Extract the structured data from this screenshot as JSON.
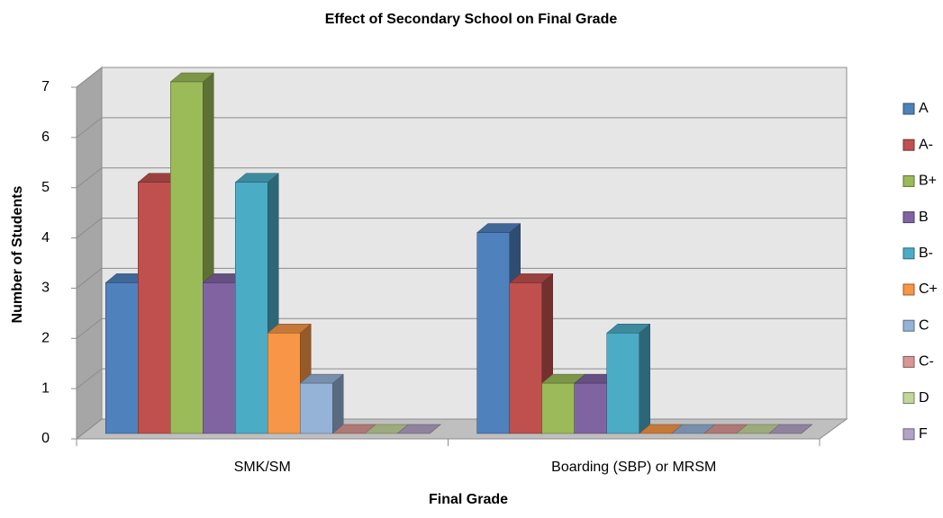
{
  "chart_data": {
    "type": "bar3d",
    "title": "Effect of Secondary School on Final Grade",
    "x_label": "Final Grade",
    "y_label": "Number of Students",
    "categories": [
      "SMK/SM",
      "Boarding (SBP) or MRSM"
    ],
    "series": [
      {
        "name": "A",
        "color": "#4f81bd",
        "values": [
          3,
          4
        ]
      },
      {
        "name": "A-",
        "color": "#c0504d",
        "values": [
          5,
          3
        ]
      },
      {
        "name": "B+",
        "color": "#9bbb59",
        "values": [
          7,
          1
        ]
      },
      {
        "name": "B",
        "color": "#8064a2",
        "values": [
          3,
          1
        ]
      },
      {
        "name": "B-",
        "color": "#4bacc6",
        "values": [
          5,
          2
        ]
      },
      {
        "name": "C+",
        "color": "#f79646",
        "values": [
          2,
          0
        ]
      },
      {
        "name": "C",
        "color": "#95b3d7",
        "values": [
          1,
          0
        ]
      },
      {
        "name": "C-",
        "color": "#d99694",
        "values": [
          0,
          0
        ]
      },
      {
        "name": "D",
        "color": "#c3d69b",
        "values": [
          0,
          0
        ]
      },
      {
        "name": "F",
        "color": "#b3a2c7",
        "values": [
          0,
          0
        ]
      }
    ],
    "ylim": [
      0,
      7
    ],
    "yticks": [
      0,
      1,
      2,
      3,
      4,
      5,
      6,
      7
    ],
    "grid": true,
    "legend": "right"
  }
}
